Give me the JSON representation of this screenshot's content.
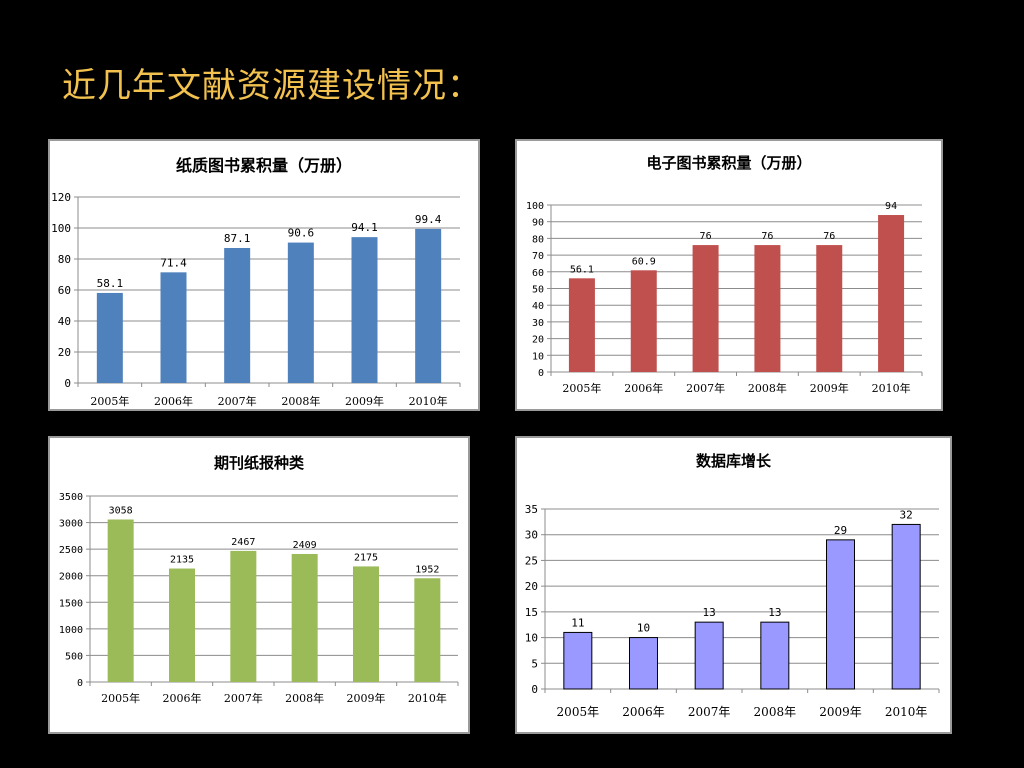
{
  "slide": {
    "title": "近几年文献资源建设情况："
  },
  "chart_data": [
    {
      "type": "bar",
      "title": "纸质图书累积量（万册）",
      "categories": [
        "2005年",
        "2006年",
        "2007年",
        "2008年",
        "2009年",
        "2010年"
      ],
      "values": [
        58.1,
        71.4,
        87.1,
        90.6,
        94.1,
        99.4
      ],
      "labels": [
        "58.1",
        "71.4",
        "87.1",
        "90.6",
        "94.1",
        "99.4"
      ],
      "ylim": [
        0,
        120
      ],
      "yticks": [
        0,
        20,
        40,
        60,
        80,
        100,
        120
      ],
      "color": "#4f81bd",
      "grid": true
    },
    {
      "type": "bar",
      "title": "电子图书累积量（万册）",
      "categories": [
        "2005年",
        "2006年",
        "2007年",
        "2008年",
        "2009年",
        "2010年"
      ],
      "values": [
        56.1,
        60.9,
        76,
        76,
        76,
        94
      ],
      "labels": [
        "56.1",
        "60.9",
        "76",
        "76",
        "76",
        "94"
      ],
      "ylim": [
        0,
        100
      ],
      "yticks": [
        0,
        10,
        20,
        30,
        40,
        50,
        60,
        70,
        80,
        90,
        100
      ],
      "color": "#c0504d",
      "grid": true
    },
    {
      "type": "bar",
      "title": "期刊纸报种类",
      "categories": [
        "2005年",
        "2006年",
        "2007年",
        "2008年",
        "2009年",
        "2010年"
      ],
      "values": [
        3058,
        2135,
        2467,
        2409,
        2175,
        1952
      ],
      "labels": [
        "3058",
        "2135",
        "2467",
        "2409",
        "2175",
        "1952"
      ],
      "ylim": [
        0,
        3500
      ],
      "yticks": [
        0,
        500,
        1000,
        1500,
        2000,
        2500,
        3000,
        3500
      ],
      "color": "#9bbb59",
      "grid": true
    },
    {
      "type": "bar",
      "title": "数据库增长",
      "categories": [
        "2005年",
        "2006年",
        "2007年",
        "2008年",
        "2009年",
        "2010年"
      ],
      "values": [
        11,
        10,
        13,
        13,
        29,
        32
      ],
      "labels": [
        "11",
        "10",
        "13",
        "13",
        "29",
        "32"
      ],
      "ylim": [
        0,
        35
      ],
      "yticks": [
        0,
        5,
        10,
        15,
        20,
        25,
        30,
        35
      ],
      "color": "#9999ff",
      "grid": true
    }
  ]
}
